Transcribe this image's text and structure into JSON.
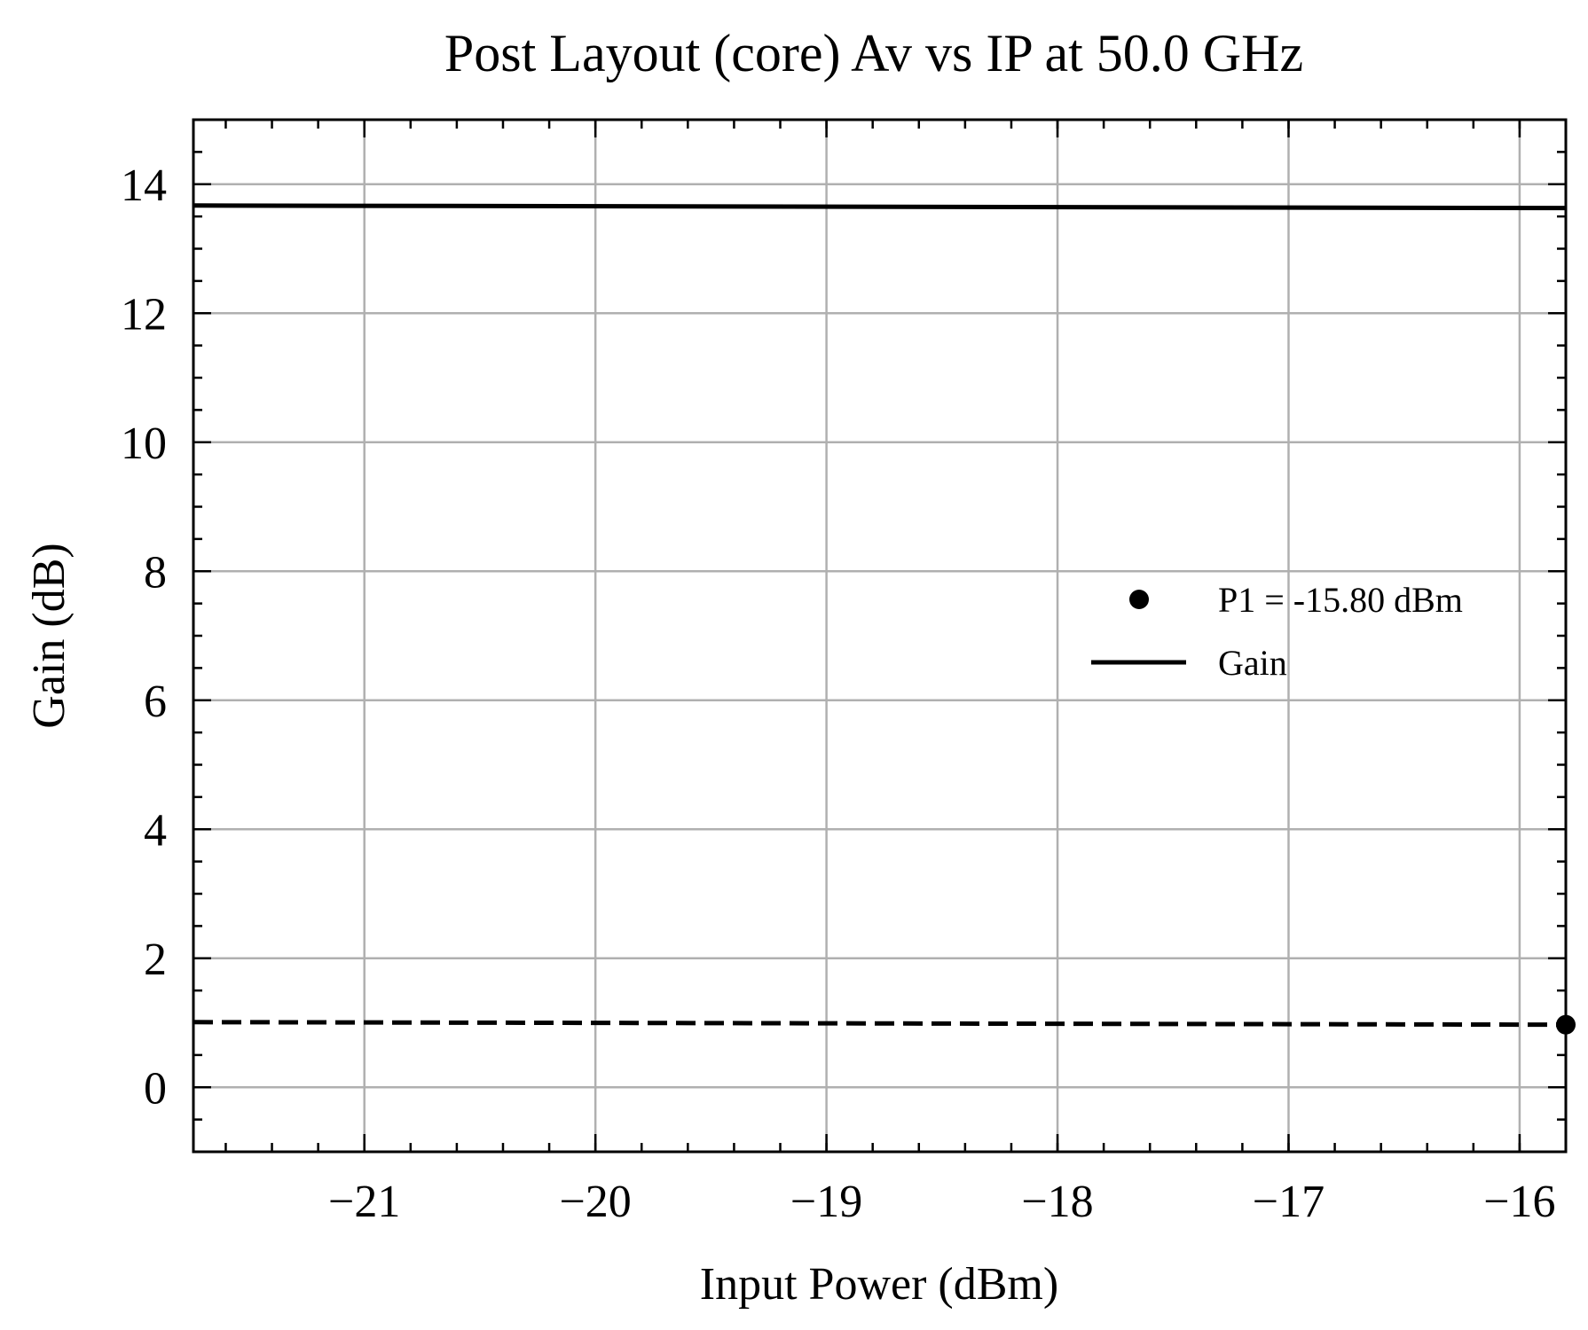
{
  "chart_data": {
    "type": "line",
    "title": "Post Layout (core) Av vs IP at 50.0 GHz",
    "xlabel": "Input Power (dBm)",
    "ylabel": "Gain (dB)",
    "xlim": [
      -21.74,
      -15.8
    ],
    "ylim": [
      -1.0,
      15.0
    ],
    "x_ticks": [
      -21,
      -20,
      -19,
      -18,
      -17,
      -16
    ],
    "x_tick_labels": [
      "−21",
      "−20",
      "−19",
      "−18",
      "−17",
      "−16"
    ],
    "y_ticks": [
      0,
      2,
      4,
      6,
      8,
      10,
      12,
      14
    ],
    "y_tick_labels": [
      "0",
      "2",
      "4",
      "6",
      "8",
      "10",
      "12",
      "14"
    ],
    "x_minor_step": 0.2,
    "y_minor_step": 0.5,
    "grid": true,
    "legend_position": "center-right",
    "series": [
      {
        "name": "Gain",
        "style": "solid",
        "color": "#000000",
        "x": [
          -21.74,
          -15.8
        ],
        "y": [
          13.67,
          13.63
        ]
      },
      {
        "style": "dashed",
        "color": "#000000",
        "x": [
          -21.74,
          -15.8
        ],
        "y": [
          1.01,
          0.97
        ]
      },
      {
        "name": "P1 = -15.80 dBm",
        "style": "marker",
        "color": "#000000",
        "x": [
          -15.8
        ],
        "y": [
          0.97
        ]
      }
    ]
  }
}
